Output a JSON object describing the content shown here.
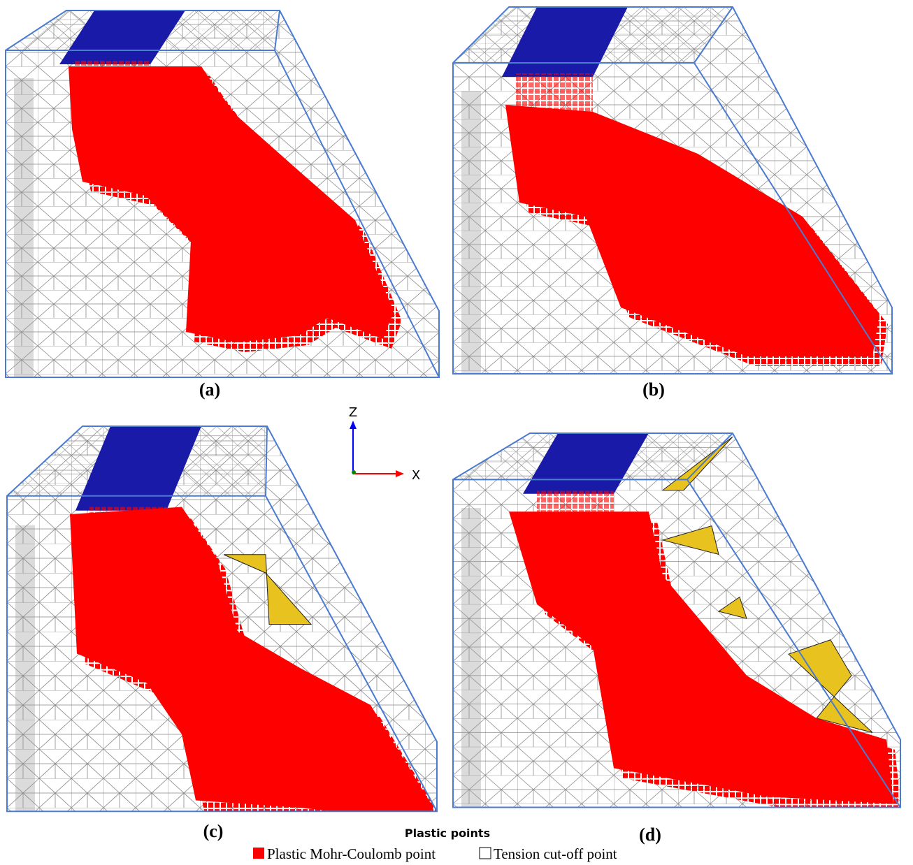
{
  "panels": [
    {
      "label": "(a)"
    },
    {
      "label": "(b)"
    },
    {
      "label": "(c)"
    },
    {
      "label": "(d)"
    }
  ],
  "axes": {
    "z": "Z",
    "x": "X"
  },
  "legend": {
    "title": "Plastic points",
    "items": [
      {
        "label": "Plastic Mohr-Coulomb point"
      },
      {
        "label": "Tension cut-off point"
      }
    ]
  }
}
